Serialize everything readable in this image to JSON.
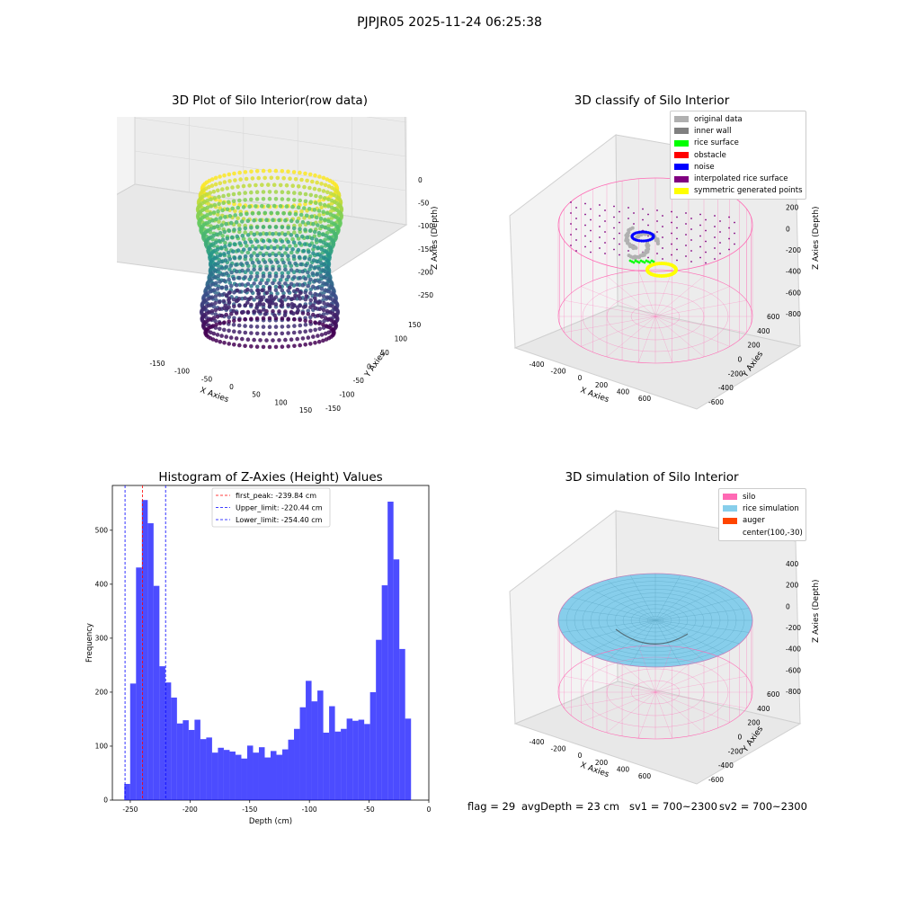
{
  "suptitle": "PJPJR05 2025-11-24 06:25:38",
  "panels": {
    "raw": {
      "title": "3D Plot of Silo Interior(row data)",
      "xlabel": "X Axies",
      "ylabel": "Y Axies",
      "zlabel": "Z Axies (Depth)",
      "xticks": [
        "-150",
        "-100",
        "-50",
        "0",
        "50",
        "100",
        "150"
      ],
      "yticks": [
        "150",
        "100",
        "50",
        "0",
        "-50",
        "-100",
        "-150"
      ],
      "zticks": [
        "0",
        "-50",
        "-100",
        "-150",
        "-200",
        "-250"
      ]
    },
    "classify": {
      "title": "3D classify of Silo Interior",
      "xlabel": "X Axies",
      "ylabel": "Y Axies",
      "zlabel": "Z Axies (Depth)",
      "xticks": [
        "-400",
        "-200",
        "0",
        "200",
        "400",
        "600"
      ],
      "yticks": [
        "600",
        "400",
        "200",
        "0",
        "-200",
        "-400",
        "-600"
      ],
      "zticks": [
        "400",
        "200",
        "0",
        "-200",
        "-400",
        "-600",
        "-800"
      ],
      "legend": [
        {
          "label": "original data",
          "color": "#b0b0b0"
        },
        {
          "label": "inner wall",
          "color": "#808080"
        },
        {
          "label": "rice surface",
          "color": "#00ff00"
        },
        {
          "label": "obstacle",
          "color": "#ff0000"
        },
        {
          "label": "noise",
          "color": "#0000ff"
        },
        {
          "label": "interpolated rice surface",
          "color": "#800080"
        },
        {
          "label": "symmetric generated points",
          "color": "#ffff00"
        }
      ]
    },
    "simulation": {
      "title": "3D simulation of Silo Interior",
      "xlabel": "X Axies",
      "ylabel": "Y Axies",
      "zlabel": "Z Axies (Depth)",
      "xticks": [
        "-400",
        "-200",
        "0",
        "200",
        "400",
        "600"
      ],
      "yticks": [
        "600",
        "400",
        "200",
        "0",
        "-200",
        "-400",
        "-600"
      ],
      "zticks": [
        "400",
        "200",
        "0",
        "-200",
        "-400",
        "-600",
        "-800"
      ],
      "legend": [
        {
          "label": "silo",
          "color": "#ff69b4"
        },
        {
          "label": "rice simulation",
          "color": "#87ceeb"
        },
        {
          "label": "auger",
          "color": "#ff4500"
        },
        {
          "label": "center(100,-30)",
          "color": ""
        }
      ]
    }
  },
  "chart_data": {
    "type": "bar",
    "title": "Histogram of Z-Axies (Height) Values",
    "xlabel": "Depth (cm)",
    "ylabel": "Frequency",
    "xlim": [
      -265,
      0
    ],
    "ylim": [
      0,
      583
    ],
    "xticks": [
      -250,
      -200,
      -150,
      -100,
      -50,
      0
    ],
    "yticks": [
      0,
      100,
      200,
      300,
      400,
      500
    ],
    "bin_start": -255,
    "bin_width": 4.9,
    "values": [
      30,
      216,
      431,
      556,
      513,
      397,
      248,
      218,
      190,
      142,
      148,
      130,
      149,
      113,
      116,
      88,
      97,
      93,
      90,
      84,
      77,
      101,
      88,
      98,
      79,
      91,
      84,
      94,
      112,
      132,
      172,
      221,
      183,
      203,
      125,
      174,
      127,
      132,
      151,
      147,
      149,
      141,
      200,
      297,
      398,
      553,
      446,
      280,
      151
    ],
    "bar_color": "#0000ff",
    "lines": [
      {
        "label": "first_peak: -239.84 cm",
        "x": -239.84,
        "color": "#ff0000"
      },
      {
        "label": "Upper_limit: -220.44 cm",
        "x": -220.44,
        "color": "#0000ff"
      },
      {
        "label": "Lower_limit: -254.40 cm",
        "x": -254.4,
        "color": "#0000ff"
      }
    ],
    "legend_position": "upper center"
  },
  "footer": {
    "flag": "flag = 29",
    "avg": "avgDepth = 23 cm",
    "sv1": "sv1 = 700~2300",
    "sv2": "sv2 = 700~2300"
  }
}
